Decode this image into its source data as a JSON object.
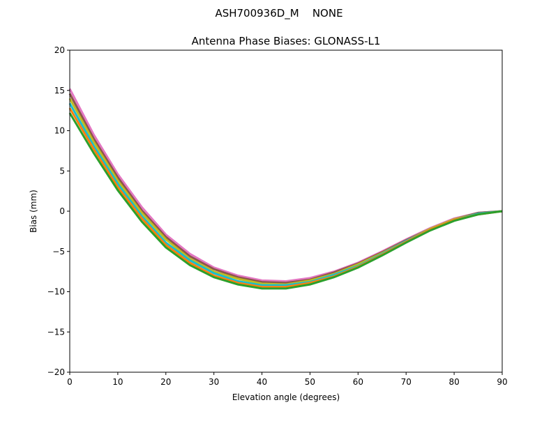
{
  "chart_data": {
    "type": "line",
    "suptitle": "ASH700936D_M    NONE",
    "title": "Antenna Phase Biases: GLONASS-L1",
    "xlabel": "Elevation angle (degrees)",
    "ylabel": "Bias (mm)",
    "xlim": [
      0,
      90
    ],
    "ylim": [
      -20,
      20
    ],
    "xticks": [
      0,
      10,
      20,
      30,
      40,
      50,
      60,
      70,
      80,
      90
    ],
    "yticks": [
      -20,
      -15,
      -10,
      -5,
      0,
      5,
      10,
      15,
      20
    ],
    "ytick_labels": [
      "−20",
      "−15",
      "−10",
      "−5",
      "0",
      "5",
      "10",
      "15",
      "20"
    ],
    "grid": false,
    "x": [
      0,
      5,
      10,
      15,
      20,
      25,
      30,
      35,
      40,
      45,
      50,
      55,
      60,
      65,
      70,
      75,
      80,
      85,
      90
    ],
    "series": [
      {
        "color": "#e377c2",
        "values": [
          15.2,
          9.5,
          4.6,
          0.5,
          -2.9,
          -5.3,
          -7.0,
          -8.0,
          -8.6,
          -8.7,
          -8.3,
          -7.5,
          -6.4,
          -5.0,
          -3.5,
          -2.1,
          -0.9,
          -0.2,
          0
        ]
      },
      {
        "color": "#8c564b",
        "values": [
          14.6,
          9.0,
          4.2,
          0.1,
          -3.2,
          -5.6,
          -7.2,
          -8.2,
          -8.8,
          -8.9,
          -8.5,
          -7.6,
          -6.5,
          -5.1,
          -3.6,
          -2.2,
          -1.0,
          -0.2,
          0
        ]
      },
      {
        "color": "#bcbd22",
        "values": [
          14.0,
          8.6,
          3.8,
          -0.2,
          -3.5,
          -5.9,
          -7.5,
          -8.4,
          -9.0,
          -9.1,
          -8.6,
          -7.8,
          -6.6,
          -5.2,
          -3.7,
          -2.2,
          -1.0,
          -0.3,
          0
        ]
      },
      {
        "color": "#17becf",
        "values": [
          13.4,
          8.1,
          3.4,
          -0.6,
          -3.9,
          -6.1,
          -7.7,
          -8.7,
          -9.2,
          -9.2,
          -8.8,
          -7.9,
          -6.8,
          -5.3,
          -3.7,
          -2.3,
          -1.1,
          -0.3,
          0
        ]
      },
      {
        "color": "#ff7f0e",
        "values": [
          12.8,
          7.7,
          3.0,
          -0.9,
          -4.2,
          -6.4,
          -8.0,
          -8.9,
          -9.4,
          -9.4,
          -8.9,
          -8.1,
          -6.9,
          -5.4,
          -3.8,
          -2.3,
          -1.1,
          -0.4,
          0
        ]
      },
      {
        "color": "#2ca02c",
        "values": [
          12.2,
          7.2,
          2.6,
          -1.3,
          -4.5,
          -6.7,
          -8.2,
          -9.1,
          -9.6,
          -9.6,
          -9.1,
          -8.2,
          -7.0,
          -5.5,
          -3.9,
          -2.4,
          -1.2,
          -0.4,
          0
        ]
      }
    ]
  }
}
